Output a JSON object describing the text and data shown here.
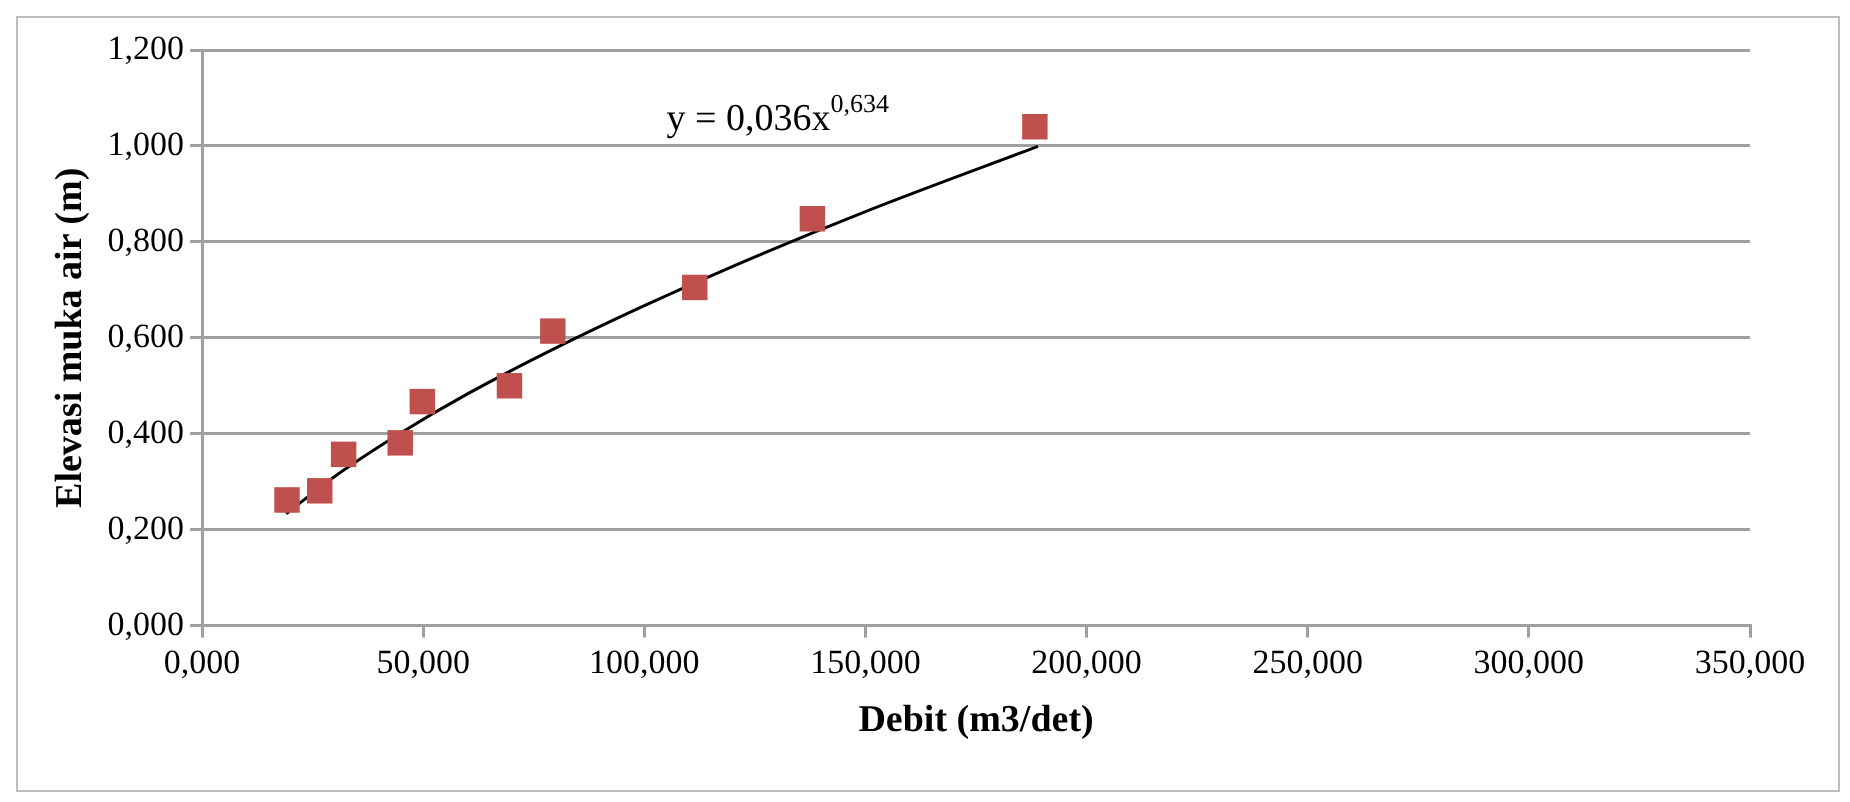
{
  "chart_data": {
    "type": "scatter",
    "xlabel": "Debit (m3/det)",
    "ylabel": "Elevasi muka air (m)",
    "series": [
      {
        "color": "#c0504d",
        "marker": "square",
        "x": [
          19.2,
          26.6,
          32,
          44.8,
          49.8,
          69.5,
          79.3,
          111.4,
          138,
          188.3
        ],
        "values": [
          0.262,
          0.281,
          0.357,
          0.381,
          0.467,
          0.5,
          0.614,
          0.705,
          0.848,
          1.04
        ]
      },
      {
        "type": "line",
        "color": "#000000",
        "marker": "none",
        "x": [
          19,
          30,
          45,
          60,
          80,
          100,
          120,
          150,
          189
        ],
        "values": [
          0.233,
          0.311,
          0.402,
          0.483,
          0.579,
          0.667,
          0.749,
          0.863,
          0.999
        ]
      }
    ],
    "xlim": [
      0,
      350
    ],
    "xticks": [
      {
        "value": 0,
        "label": "0,000"
      },
      {
        "value": 50,
        "label": "50,000"
      },
      {
        "value": 100,
        "label": "100,000"
      },
      {
        "value": 150,
        "label": "150,000"
      },
      {
        "value": 200,
        "label": "200,000"
      },
      {
        "value": 250,
        "label": "250,000"
      },
      {
        "value": 300,
        "label": "300,000"
      },
      {
        "value": 350,
        "label": "350,000"
      }
    ],
    "ylim": [
      0,
      1.2
    ],
    "yticks": [
      {
        "value": 0,
        "label": "0,000"
      },
      {
        "value": 0.2,
        "label": "0,200"
      },
      {
        "value": 0.4,
        "label": "0,400"
      },
      {
        "value": 0.6,
        "label": "0,600"
      },
      {
        "value": 0.8,
        "label": "0,800"
      },
      {
        "value": 1,
        "label": "1,000"
      },
      {
        "value": 1.2,
        "label": "1,200"
      }
    ],
    "grid": "y",
    "legend": false,
    "annotations": [
      "y = 0,036x$^{0,634}$"
    ]
  }
}
